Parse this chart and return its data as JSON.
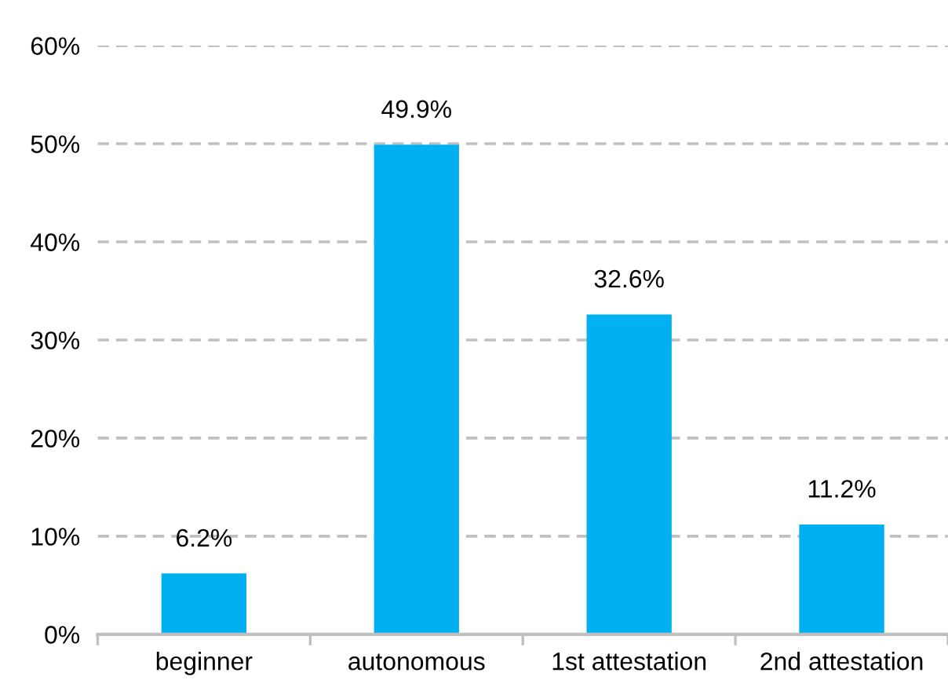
{
  "chart_data": {
    "type": "bar",
    "categories": [
      "beginner",
      "autonomous",
      "1st attestation",
      "2nd attestation"
    ],
    "values": [
      6.2,
      49.9,
      32.6,
      11.2
    ],
    "color": "#00b0f0",
    "value_labels": [
      "6.2%",
      "49.9%",
      "32.6%",
      "11.2%"
    ],
    "ylim": [
      0,
      60
    ],
    "yticks": [
      {
        "value": 0,
        "label": "0%"
      },
      {
        "value": 10,
        "label": "10%"
      },
      {
        "value": 20,
        "label": "20%"
      },
      {
        "value": 30,
        "label": "30%"
      },
      {
        "value": 40,
        "label": "40%"
      },
      {
        "value": 50,
        "label": "50%"
      },
      {
        "value": 60,
        "label": "60%"
      }
    ],
    "grid": "y"
  }
}
